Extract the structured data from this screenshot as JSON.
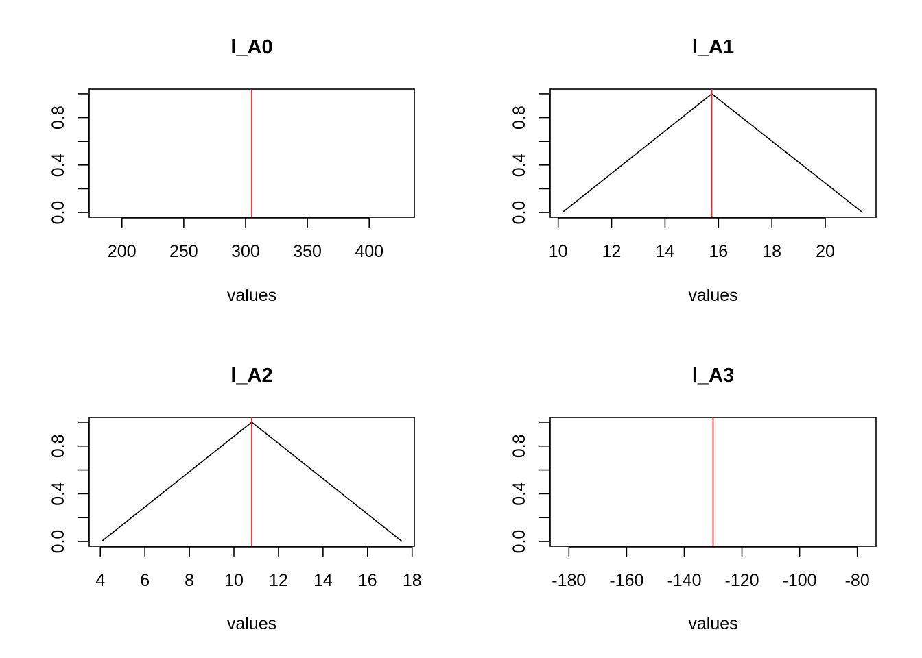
{
  "chart_data": [
    {
      "type": "line",
      "title": "l_A0",
      "xlabel": "values",
      "ylabel": "",
      "xlim": [
        173.5,
        436.5
      ],
      "ylim": [
        -0.04,
        1.04
      ],
      "x_ticks": [
        200,
        250,
        300,
        350,
        400
      ],
      "y_ticks": [
        0.0,
        0.2,
        0.4,
        0.6,
        0.8,
        1.0
      ],
      "y_tick_labels": [
        {
          "value": 0.0,
          "label": "0.0"
        },
        {
          "value": 0.4,
          "label": "0.4"
        },
        {
          "value": 0.8,
          "label": "0.8"
        }
      ],
      "series": [
        {
          "x": [],
          "y": []
        }
      ],
      "vline": {
        "x": 305,
        "color": "#e8282b"
      }
    },
    {
      "type": "line",
      "title": "l_A1",
      "xlabel": "values",
      "ylabel": "",
      "xlim": [
        9.7,
        21.9
      ],
      "ylim": [
        -0.04,
        1.04
      ],
      "x_ticks": [
        10,
        12,
        14,
        16,
        18,
        20
      ],
      "y_ticks": [
        0.0,
        0.2,
        0.4,
        0.6,
        0.8,
        1.0
      ],
      "y_tick_labels": [
        {
          "value": 0.0,
          "label": "0.0"
        },
        {
          "value": 0.4,
          "label": "0.4"
        },
        {
          "value": 0.8,
          "label": "0.8"
        }
      ],
      "series": [
        {
          "x": [
            10.15,
            15.75,
            21.4
          ],
          "y": [
            0,
            1,
            0
          ]
        }
      ],
      "vline": {
        "x": 15.75,
        "color": "#e8282b"
      }
    },
    {
      "type": "line",
      "title": "l_A2",
      "xlabel": "values",
      "ylabel": "",
      "xlim": [
        3.5,
        18.1
      ],
      "ylim": [
        -0.04,
        1.04
      ],
      "x_ticks": [
        4,
        6,
        8,
        10,
        12,
        14,
        16,
        18
      ],
      "y_ticks": [
        0.0,
        0.2,
        0.4,
        0.6,
        0.8,
        1.0
      ],
      "y_tick_labels": [
        {
          "value": 0.0,
          "label": "0.0"
        },
        {
          "value": 0.4,
          "label": "0.4"
        },
        {
          "value": 0.8,
          "label": "0.8"
        }
      ],
      "series": [
        {
          "x": [
            4.05,
            10.8,
            17.55
          ],
          "y": [
            0,
            1,
            0
          ]
        }
      ],
      "vline": {
        "x": 10.8,
        "color": "#e8282b"
      }
    },
    {
      "type": "line",
      "title": "l_A3",
      "xlabel": "values",
      "ylabel": "",
      "xlim": [
        -186.5,
        -73.5
      ],
      "ylim": [
        -0.04,
        1.04
      ],
      "x_ticks": [
        -180,
        -160,
        -140,
        -120,
        -100,
        -80
      ],
      "y_ticks": [
        0.0,
        0.2,
        0.4,
        0.6,
        0.8,
        1.0
      ],
      "y_tick_labels": [
        {
          "value": 0.0,
          "label": "0.0"
        },
        {
          "value": 0.4,
          "label": "0.4"
        },
        {
          "value": 0.8,
          "label": "0.8"
        }
      ],
      "series": [
        {
          "x": [],
          "y": []
        }
      ],
      "vline": {
        "x": -130,
        "color": "#e8282b"
      }
    }
  ]
}
